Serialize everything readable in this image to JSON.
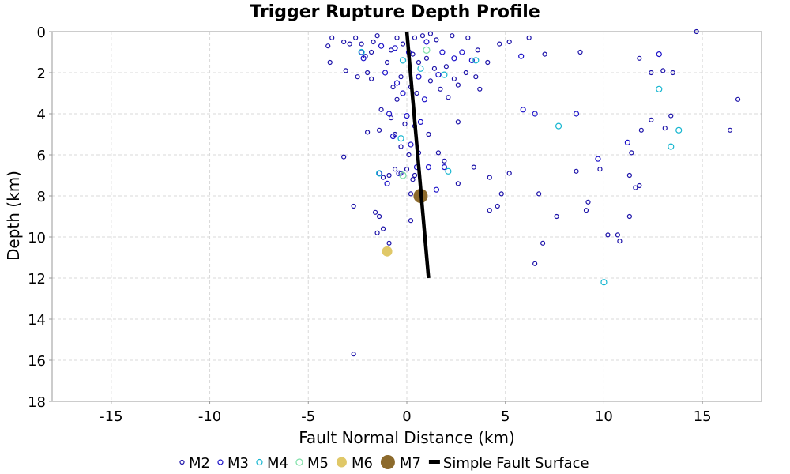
{
  "chart_data": {
    "type": "scatter",
    "title": "Trigger Rupture Depth Profile",
    "xlabel": "Fault Normal Distance (km)",
    "ylabel": "Depth (km)",
    "xlim": [
      -18,
      18
    ],
    "ylim": [
      0,
      18
    ],
    "y_inverted": true,
    "grid": true,
    "x_ticks": [
      -15,
      -10,
      -5,
      0,
      5,
      10,
      15
    ],
    "y_ticks": [
      0,
      2,
      4,
      6,
      8,
      10,
      12,
      14,
      16,
      18
    ],
    "legend_position": "bottom",
    "legend": [
      {
        "label": "M2",
        "color": "#1a10a8",
        "marker": "circle-open"
      },
      {
        "label": "M3",
        "color": "#1a10c8",
        "marker": "circle-open"
      },
      {
        "label": "M4",
        "color": "#16b6d0",
        "marker": "circle-open"
      },
      {
        "label": "M5",
        "color": "#7ee0a8",
        "marker": "circle-open"
      },
      {
        "label": "M6",
        "color": "#e0c868",
        "marker": "circle-filled"
      },
      {
        "label": "M7",
        "color": "#8c6a2c",
        "marker": "circle-filled"
      },
      {
        "label": "Simple Fault Surface",
        "color": "#000000",
        "marker": "line"
      }
    ],
    "fault_surface": {
      "x": [
        0.0,
        1.1
      ],
      "y": [
        0.0,
        12.0
      ]
    },
    "series": [
      {
        "name": "M2",
        "points": [
          [
            -4.0,
            0.7
          ],
          [
            -3.8,
            0.3
          ],
          [
            -3.2,
            0.5
          ],
          [
            -2.9,
            0.6
          ],
          [
            -2.6,
            0.3
          ],
          [
            -2.3,
            0.6
          ],
          [
            -2.1,
            1.2
          ],
          [
            -1.8,
            1.0
          ],
          [
            -1.7,
            0.5
          ],
          [
            -1.5,
            0.2
          ],
          [
            -3.9,
            1.5
          ],
          [
            -3.1,
            1.9
          ],
          [
            -2.5,
            2.2
          ],
          [
            -2.0,
            2.0
          ],
          [
            -1.8,
            2.3
          ],
          [
            -1.0,
            1.5
          ],
          [
            -0.8,
            0.9
          ],
          [
            -0.5,
            0.3
          ],
          [
            -0.2,
            0.6
          ],
          [
            0.4,
            0.3
          ],
          [
            0.8,
            0.2
          ],
          [
            1.2,
            0.1
          ],
          [
            1.5,
            0.4
          ],
          [
            2.3,
            0.2
          ],
          [
            3.1,
            0.3
          ],
          [
            3.6,
            0.9
          ],
          [
            4.1,
            1.5
          ],
          [
            4.7,
            0.6
          ],
          [
            5.2,
            0.5
          ],
          [
            6.2,
            0.3
          ],
          [
            7.0,
            1.1
          ],
          [
            8.8,
            1.0
          ],
          [
            0.3,
            1.1
          ],
          [
            0.6,
            1.5
          ],
          [
            1.0,
            1.3
          ],
          [
            1.4,
            1.8
          ],
          [
            2.0,
            1.7
          ],
          [
            2.4,
            2.3
          ],
          [
            2.6,
            2.6
          ],
          [
            3.0,
            2.0
          ],
          [
            3.5,
            2.2
          ],
          [
            3.7,
            2.8
          ],
          [
            -0.7,
            2.7
          ],
          [
            -0.3,
            2.2
          ],
          [
            0.2,
            2.7
          ],
          [
            0.5,
            3.0
          ],
          [
            1.2,
            2.4
          ],
          [
            1.7,
            2.8
          ],
          [
            2.1,
            3.2
          ],
          [
            -0.5,
            3.3
          ],
          [
            -1.3,
            3.8
          ],
          [
            -0.8,
            4.2
          ],
          [
            -1.4,
            4.8
          ],
          [
            -0.6,
            5.0
          ],
          [
            -0.1,
            4.5
          ],
          [
            0.4,
            4.6
          ],
          [
            1.1,
            5.0
          ],
          [
            2.6,
            4.4
          ],
          [
            -2.0,
            4.9
          ],
          [
            -0.3,
            5.6
          ],
          [
            0.1,
            6.0
          ],
          [
            0.6,
            5.9
          ],
          [
            1.6,
            5.9
          ],
          [
            1.9,
            6.3
          ],
          [
            3.4,
            6.6
          ],
          [
            4.2,
            7.1
          ],
          [
            5.2,
            6.9
          ],
          [
            2.6,
            7.4
          ],
          [
            4.8,
            7.9
          ],
          [
            -0.6,
            6.7
          ],
          [
            0.0,
            6.7
          ],
          [
            0.4,
            7.0
          ],
          [
            -1.2,
            7.1
          ],
          [
            -0.9,
            7.0
          ],
          [
            0.3,
            7.2
          ],
          [
            -0.3,
            6.9
          ],
          [
            0.2,
            7.9
          ],
          [
            4.6,
            8.5
          ],
          [
            4.2,
            8.7
          ],
          [
            6.7,
            7.9
          ],
          [
            -2.7,
            8.5
          ],
          [
            -1.6,
            8.8
          ],
          [
            -1.4,
            9.0
          ],
          [
            -1.2,
            9.6
          ],
          [
            -1.5,
            9.8
          ],
          [
            0.2,
            9.2
          ],
          [
            -0.9,
            10.3
          ],
          [
            6.9,
            10.3
          ],
          [
            7.6,
            9.0
          ],
          [
            9.2,
            8.3
          ],
          [
            9.1,
            8.7
          ],
          [
            8.6,
            6.8
          ],
          [
            9.8,
            6.7
          ],
          [
            11.3,
            7.0
          ],
          [
            11.6,
            7.6
          ],
          [
            11.8,
            7.5
          ],
          [
            11.3,
            9.0
          ],
          [
            11.4,
            5.9
          ],
          [
            11.9,
            4.8
          ],
          [
            12.4,
            4.3
          ],
          [
            13.1,
            4.7
          ],
          [
            13.4,
            4.1
          ],
          [
            11.8,
            1.3
          ],
          [
            12.4,
            2.0
          ],
          [
            13.0,
            1.9
          ],
          [
            13.5,
            2.0
          ],
          [
            10.2,
            9.9
          ],
          [
            10.7,
            9.9
          ],
          [
            10.8,
            10.2
          ],
          [
            6.5,
            11.3
          ],
          [
            -3.2,
            6.1
          ],
          [
            -2.7,
            15.7
          ],
          [
            14.7,
            0.0
          ],
          [
            16.4,
            4.8
          ],
          [
            16.8,
            3.3
          ]
        ]
      },
      {
        "name": "M3",
        "points": [
          [
            -2.2,
            1.3
          ],
          [
            -1.3,
            0.7
          ],
          [
            -0.6,
            0.8
          ],
          [
            0.1,
            1.0
          ],
          [
            1.0,
            0.5
          ],
          [
            1.8,
            1.0
          ],
          [
            2.8,
            1.0
          ],
          [
            3.3,
            1.4
          ],
          [
            -1.1,
            2.0
          ],
          [
            -0.5,
            2.5
          ],
          [
            0.6,
            2.2
          ],
          [
            1.6,
            2.1
          ],
          [
            2.4,
            1.3
          ],
          [
            -0.2,
            3.0
          ],
          [
            0.9,
            3.3
          ],
          [
            -0.9,
            4.0
          ],
          [
            0.0,
            4.1
          ],
          [
            0.7,
            4.4
          ],
          [
            -0.7,
            5.1
          ],
          [
            0.2,
            5.5
          ],
          [
            1.9,
            6.6
          ],
          [
            -1.0,
            7.4
          ],
          [
            -0.4,
            6.9
          ],
          [
            0.5,
            6.6
          ],
          [
            1.1,
            6.6
          ],
          [
            1.5,
            7.7
          ],
          [
            6.5,
            4.0
          ],
          [
            8.6,
            4.0
          ],
          [
            5.9,
            3.8
          ],
          [
            9.7,
            6.2
          ],
          [
            11.2,
            5.4
          ],
          [
            12.8,
            1.1
          ],
          [
            5.8,
            1.2
          ],
          [
            -1.4,
            6.9
          ],
          [
            -2.3,
            1.0
          ]
        ]
      },
      {
        "name": "M4",
        "points": [
          [
            -2.3,
            1.0
          ],
          [
            -0.2,
            1.4
          ],
          [
            0.7,
            1.8
          ],
          [
            1.9,
            2.1
          ],
          [
            3.5,
            1.4
          ],
          [
            -0.3,
            5.2
          ],
          [
            -1.4,
            6.9
          ],
          [
            2.1,
            6.8
          ],
          [
            7.7,
            4.6
          ],
          [
            12.8,
            2.8
          ],
          [
            13.4,
            5.6
          ],
          [
            13.8,
            4.8
          ],
          [
            10.0,
            12.2
          ]
        ]
      },
      {
        "name": "M5",
        "points": [
          [
            1.0,
            0.9
          ],
          [
            -0.2,
            7.0
          ]
        ]
      },
      {
        "name": "M6",
        "points": [
          [
            -1.0,
            10.7
          ]
        ]
      },
      {
        "name": "M7",
        "points": [
          [
            0.7,
            8.0
          ]
        ]
      }
    ]
  }
}
